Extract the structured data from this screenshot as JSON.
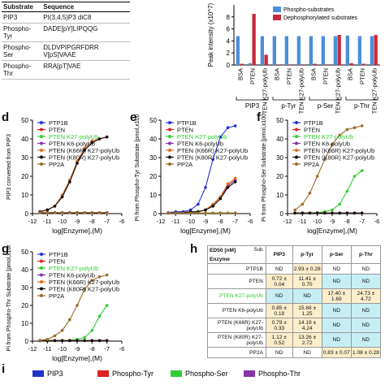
{
  "panel_labels": {
    "d": "d",
    "e": "e",
    "f": "f",
    "g": "g",
    "h": "h",
    "i": "i"
  },
  "table_a": {
    "headers": [
      "Substrate",
      "Sequence"
    ],
    "rows": [
      {
        "substrate": "PIP3",
        "sequence": "PI(3,4,5)P3 diC8"
      },
      {
        "substrate": "Phospho-Tyr",
        "sequence": "DADE[pY]LIPQQG"
      },
      {
        "substrate": "Phospho-Ser",
        "sequence": "DLDVPIPGRFDRR V[pS]VAAE"
      },
      {
        "substrate": "Phospho-Thr",
        "sequence": "RRA[pT]VAE"
      }
    ]
  },
  "chart_data": [
    {
      "id": "c",
      "type": "bar",
      "ylabel": "Peak intensity (x10^7)",
      "ylim": [
        0,
        10
      ],
      "yticks": [
        0,
        2,
        4,
        6,
        8
      ],
      "categories": [
        "BSA",
        "PTEN",
        "PTEN K27-polyUb",
        "BSA",
        "PTEN",
        "PTEN K27-polyUb",
        "BSA",
        "PTEN",
        "PTEN K27-polyUb",
        "BSA",
        "PTEN",
        "PTEN K27-polyUb"
      ],
      "groups": [
        "PIP3",
        "p-Tyr",
        "p-Ser",
        "p-Thr"
      ],
      "series": [
        {
          "name": "Phospho-substrates",
          "color": "#4a8fd9",
          "values": [
            4.8,
            0.3,
            4.8,
            4.8,
            4.8,
            4.8,
            4.8,
            4.8,
            4.8,
            4.9,
            4.8,
            4.8
          ]
        },
        {
          "name": "Dephosphorylated substrates",
          "color": "#c8283c",
          "values": [
            0.2,
            8.5,
            1.7,
            0.1,
            0.1,
            0.1,
            0.2,
            0.1,
            5.0,
            0.3,
            0.2,
            5.0
          ]
        }
      ]
    },
    {
      "id": "d",
      "type": "line",
      "ylabel": "PIP3 converted from PIP3",
      "xlabel": "log[Enzyme],(M)",
      "xlim": [
        -12,
        -6
      ],
      "ylim": [
        0,
        50
      ],
      "xticks": [
        -12,
        -11,
        -10,
        -9,
        -8,
        -7,
        -6
      ],
      "yticks": [
        0,
        10,
        20,
        30,
        40,
        50
      ],
      "x": [
        -11.5,
        -11,
        -10.5,
        -10,
        -9.5,
        -9,
        -8.5,
        -8,
        -7.5,
        -7
      ],
      "series": [
        {
          "name": "PTP1B",
          "color": "#2233cc",
          "values": [
            0.5,
            0.5,
            0.5,
            0.5,
            0.5,
            0.5,
            0.5,
            0.5,
            0.5,
            0.5
          ]
        },
        {
          "name": "PTEN",
          "color": "#dd2222",
          "values": [
            1,
            2,
            4,
            9,
            17,
            27,
            34,
            38,
            40,
            41
          ]
        },
        {
          "name": "PTEN K27-polyUb",
          "color": "#33cc33",
          "values": [
            0.5,
            0.5,
            0.5,
            0.5,
            0.5,
            0.5,
            0.5,
            0.5,
            0.5,
            0.5
          ]
        },
        {
          "name": "PTEN K6-polyUb",
          "color": "#8833aa",
          "values": [
            0.5,
            0.5,
            0.5,
            0.5,
            0.5,
            0.5,
            0.5,
            0.5,
            0.5,
            0.5
          ]
        },
        {
          "name": "PTEN (K66R) K27-polyUb",
          "color": "#e07020",
          "values": [
            1,
            2,
            4,
            10,
            18,
            28,
            35,
            39,
            40,
            41
          ]
        },
        {
          "name": "PTEN (K80R) K27-polyUb",
          "color": "#111111",
          "values": [
            1,
            2,
            4,
            9,
            17,
            27,
            34,
            38,
            40,
            41
          ]
        },
        {
          "name": "PP2A",
          "color": "#9a6b2a",
          "values": [
            0.5,
            0.5,
            0.5,
            0.5,
            0.5,
            0.5,
            0.5,
            0.5,
            0.5,
            0.5
          ]
        }
      ]
    },
    {
      "id": "e",
      "type": "line",
      "ylabel": "Pi from Phospho-Tyr Substrate [pmol,x100]",
      "xlabel": "log[Enzyme],(M)",
      "xlim": [
        -12,
        -6
      ],
      "ylim": [
        0,
        50
      ],
      "xticks": [
        -12,
        -11,
        -10,
        -9,
        -8,
        -7,
        -6
      ],
      "yticks": [
        0,
        10,
        20,
        30,
        40,
        50
      ],
      "x": [
        -11.5,
        -11,
        -10.5,
        -10,
        -9.5,
        -9,
        -8.5,
        -8,
        -7.5,
        -7
      ],
      "series": [
        {
          "name": "PTP1B",
          "color": "#2233cc",
          "values": [
            0.5,
            1,
            1,
            2,
            5,
            14,
            29,
            41,
            46,
            47
          ]
        },
        {
          "name": "PTEN",
          "color": "#dd2222",
          "values": [
            0.3,
            0.3,
            0.5,
            1,
            1,
            2,
            4,
            8,
            15,
            18
          ]
        },
        {
          "name": "PTEN K27-polyUb",
          "color": "#33cc33",
          "values": [
            0.3,
            0.3,
            0.3,
            0.3,
            0.3,
            0.3,
            0.3,
            0.3,
            0.3,
            0.3
          ]
        },
        {
          "name": "PTEN K6-polyUb",
          "color": "#8833aa",
          "values": [
            0.3,
            0.3,
            0.5,
            1,
            1,
            2,
            5,
            9,
            15,
            18
          ]
        },
        {
          "name": "PTEN (K66R) K27-polyUb",
          "color": "#e07020",
          "values": [
            0.3,
            0.3,
            0.5,
            1,
            1,
            2,
            5,
            9,
            16,
            19
          ]
        },
        {
          "name": "PTEN (K80R) K27-polyUb",
          "color": "#111111",
          "values": [
            0.3,
            0.3,
            0.5,
            1,
            1,
            2,
            4,
            8,
            14,
            17
          ]
        },
        {
          "name": "PP2A",
          "color": "#9a6b2a",
          "values": [
            0.3,
            0.3,
            0.3,
            0.3,
            0.3,
            0.3,
            0.3,
            0.3,
            0.3,
            0.3
          ]
        }
      ]
    },
    {
      "id": "f",
      "type": "line",
      "ylabel": "Pi from Phospho-Ser Substrate [pmol,x100]",
      "xlabel": "log[Enzyme],(M)",
      "xlim": [
        -12,
        -6
      ],
      "ylim": [
        0,
        50
      ],
      "xticks": [
        -12,
        -11,
        -10,
        -9,
        -8,
        -7,
        -6
      ],
      "yticks": [
        0,
        10,
        20,
        30,
        40,
        50
      ],
      "x": [
        -11.5,
        -11,
        -10.5,
        -10,
        -9.5,
        -9,
        -8.5,
        -8,
        -7.5,
        -7
      ],
      "series": [
        {
          "name": "PTP1B",
          "color": "#2233cc",
          "values": [
            0.3,
            0.3,
            0.3,
            0.3,
            0.3,
            0.3,
            0.3,
            0.3,
            0.3,
            0.3
          ]
        },
        {
          "name": "PTEN",
          "color": "#dd2222",
          "values": [
            0.3,
            0.3,
            0.3,
            0.3,
            0.3,
            0.3,
            0.3,
            0.3,
            0.3,
            0.3
          ]
        },
        {
          "name": "PTEN K27-polyUb",
          "color": "#33cc33",
          "values": [
            0.3,
            0.3,
            0.3,
            0.5,
            1,
            2,
            5,
            12,
            20,
            23
          ]
        },
        {
          "name": "PTEN K6-polyUb",
          "color": "#8833aa",
          "values": [
            0.3,
            0.3,
            0.3,
            0.3,
            0.3,
            0.3,
            0.3,
            0.3,
            0.3,
            0.3
          ]
        },
        {
          "name": "PTEN (K66R) K27-polyUb",
          "color": "#e07020",
          "values": [
            0.3,
            0.3,
            0.3,
            0.3,
            0.3,
            0.3,
            0.3,
            0.3,
            0.3,
            0.3
          ]
        },
        {
          "name": "PTEN (K80R) K27-polyUb",
          "color": "#111111",
          "values": [
            0.3,
            0.3,
            0.3,
            0.3,
            0.3,
            0.3,
            0.3,
            0.3,
            0.3,
            0.3
          ]
        },
        {
          "name": "PP2A",
          "color": "#9a6b2a",
          "values": [
            2,
            5,
            11,
            20,
            29,
            37,
            42,
            45,
            46,
            47
          ]
        }
      ]
    },
    {
      "id": "g",
      "type": "line",
      "ylabel": "Pi from Phospho-Thr Substrate [pmol,x100]",
      "xlabel": "log[Enzyme],(M)",
      "xlim": [
        -12,
        -6
      ],
      "ylim": [
        0,
        50
      ],
      "xticks": [
        -12,
        -11,
        -10,
        -9,
        -8,
        -7,
        -6
      ],
      "yticks": [
        0,
        10,
        20,
        30,
        40,
        50
      ],
      "x": [
        -11.5,
        -11,
        -10.5,
        -10,
        -9.5,
        -9,
        -8.5,
        -8,
        -7.5,
        -7
      ],
      "series": [
        {
          "name": "PTP1B",
          "color": "#2233cc",
          "values": [
            0.3,
            0.3,
            0.3,
            0.3,
            0.3,
            0.3,
            0.3,
            0.3,
            0.3,
            0.3
          ]
        },
        {
          "name": "PTEN",
          "color": "#dd2222",
          "values": [
            0.3,
            0.3,
            0.3,
            0.3,
            0.3,
            0.3,
            0.3,
            0.3,
            0.3,
            0.3
          ]
        },
        {
          "name": "PTEN K27-polyUb",
          "color": "#33cc33",
          "values": [
            0.3,
            0.3,
            0.3,
            0.3,
            0.5,
            1,
            2,
            6,
            14,
            20
          ]
        },
        {
          "name": "PTEN K6-polyUb",
          "color": "#8833aa",
          "values": [
            0.3,
            0.3,
            0.3,
            0.3,
            0.3,
            0.3,
            0.3,
            0.3,
            0.3,
            0.3
          ]
        },
        {
          "name": "PTEN (K66R) K27-polyUb",
          "color": "#e07020",
          "values": [
            0.3,
            0.3,
            0.3,
            0.3,
            0.3,
            0.3,
            0.3,
            0.3,
            0.3,
            0.3
          ]
        },
        {
          "name": "PTEN (K80R) K27-polyUb",
          "color": "#111111",
          "values": [
            0.3,
            0.3,
            0.3,
            0.3,
            0.3,
            0.3,
            0.3,
            0.3,
            0.3,
            0.3
          ]
        },
        {
          "name": "PP2A",
          "color": "#9a6b2a",
          "values": [
            0.5,
            1,
            3,
            6,
            12,
            20,
            29,
            34,
            36,
            37
          ]
        }
      ]
    }
  ],
  "table_h": {
    "unit_label": "ED50 [nM]",
    "sub_label": "Sub.",
    "enzyme_label": "Enzyme",
    "columns": [
      "PIP3",
      "p-Tyr",
      "p-Ser",
      "p-Thr"
    ],
    "rows": [
      {
        "enzyme": "PTP1B",
        "cells": [
          "ND",
          "2.93 ± 0.28",
          "ND",
          "ND"
        ]
      },
      {
        "enzyme": "PTEN",
        "cells": [
          "0.72 ± 0.04",
          "11.41 ± 0.70",
          "ND",
          "ND"
        ]
      },
      {
        "enzyme": "PTEN K27-polyUb",
        "cells": [
          "ND",
          "ND",
          "17.40 ± 1.69",
          "24.73 ± 4.72"
        ]
      },
      {
        "enzyme": "PTEN K6-polyUb",
        "cells": [
          "0.85 ± 0.18",
          "15.68 ± 1.25",
          "ND",
          "ND"
        ]
      },
      {
        "enzyme": "PTEN (K66R) K27-polyUb",
        "cells": [
          "0.79 ± 0.33",
          "14.19 ± 4.24",
          "ND",
          "ND"
        ]
      },
      {
        "enzyme": "PTEN (K80R) K27-polyUb",
        "cells": [
          "1.12 ± 0.52",
          "13.26 ± 2.72",
          "ND",
          "ND"
        ]
      },
      {
        "enzyme": "PP2A",
        "cells": [
          "ND",
          "ND",
          "0.83 ± 0.07",
          "1.08 ± 0.28"
        ]
      }
    ]
  },
  "panel_i_legend": [
    {
      "name": "PIP3",
      "color": "#2233cc"
    },
    {
      "name": "Phospho-Tyr",
      "color": "#dd2222"
    },
    {
      "name": "Phospho-Ser",
      "color": "#33cc33"
    },
    {
      "name": "Phospho-Thr",
      "color": "#8833aa"
    }
  ]
}
